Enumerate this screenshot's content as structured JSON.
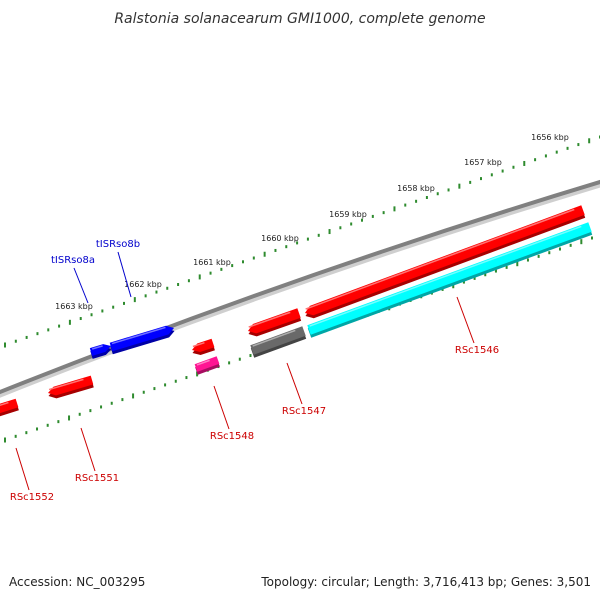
{
  "title": "Ralstonia solanacearum GMI1000, complete genome",
  "footer": {
    "accession": "Accession: NC_003295",
    "stats": "Topology: circular; Length: 3,716,413 bp; Genes: 3,501"
  },
  "ticks": [
    {
      "label": "1656 kbp"
    },
    {
      "label": "1657 kbp"
    },
    {
      "label": "1658 kbp"
    },
    {
      "label": "1659 kbp"
    },
    {
      "label": "1660 kbp"
    },
    {
      "label": "1661 kbp"
    },
    {
      "label": "1662 kbp"
    },
    {
      "label": "1663 kbp"
    }
  ],
  "features": [
    {
      "id": "RSc1546",
      "label": "RSc1546",
      "color": "#ff0000",
      "label_color": "#cc0000"
    },
    {
      "id": "RSc1547",
      "label": "RSc1547",
      "color": "#ff0000",
      "label_color": "#cc0000"
    },
    {
      "id": "RSc1548",
      "label": "RSc1548",
      "color": "#ff0000",
      "label_color": "#cc0000"
    },
    {
      "id": "RSc1551",
      "label": "RSc1551",
      "color": "#ff0000",
      "label_color": "#cc0000"
    },
    {
      "id": "RSc1552",
      "label": "RSc1552",
      "color": "#ff0000",
      "label_color": "#cc0000"
    },
    {
      "id": "tISRso8a",
      "label": "tISRso8a",
      "color": "#0000ff",
      "label_color": "#0000cc"
    },
    {
      "id": "tISRso8b",
      "label": "tISRso8b",
      "color": "#0000ff",
      "label_color": "#0000cc"
    }
  ],
  "colors": {
    "backbone": "#808080",
    "ticks": "#2e8b2e",
    "cds_forward": "#ff0000",
    "cds_reverse": "#ff0000",
    "mobile_element": "#0000ff",
    "misc_feature": "#00ffff",
    "pseudo": "#696969",
    "rna": "#ff1493"
  }
}
